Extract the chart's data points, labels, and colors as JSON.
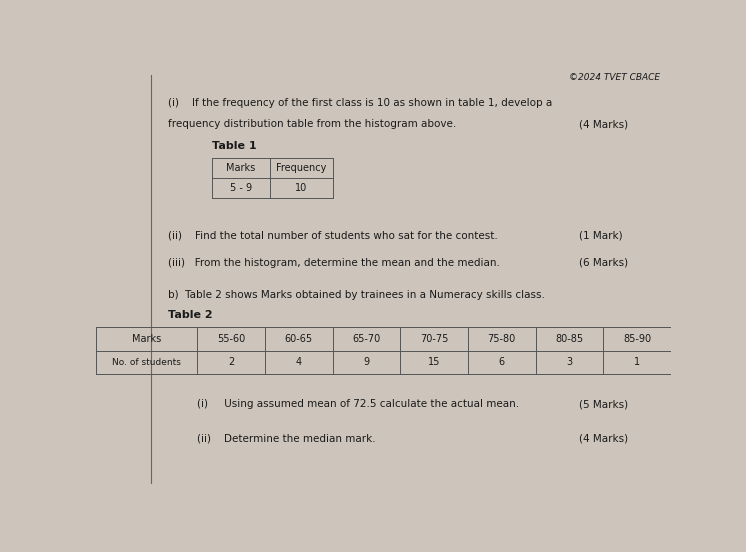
{
  "bg_color": "#cdc5bb",
  "header_text": "©2024 TVET CBACE",
  "part_a_i_text1": "(i)    If the frequency of the first class is 10 as shown in table 1, develop a",
  "part_a_i_text2": "frequency distribution table from the histogram above.",
  "part_a_i_marks": "(4 Marks)",
  "table1_title": "Table 1",
  "table1_headers": [
    "Marks",
    "Frequency"
  ],
  "table1_row": [
    "5 - 9",
    "10"
  ],
  "part_a_ii_text": "(ii)    Find the total number of students who sat for the contest.",
  "part_a_ii_marks": "(1 Mark)",
  "part_a_iii_text": "(iii)   From the histogram, determine the mean and the median.",
  "part_a_iii_marks": "(6 Marks)",
  "part_b_intro": "b)  Table 2 shows Marks obtained by trainees in a Numeracy skills class.",
  "table2_title": "Table 2",
  "table2_col0": "Marks",
  "table2_col0b": "No. of students",
  "table2_headers": [
    "55-60",
    "60-65",
    "65-70",
    "70-75",
    "75-80",
    "80-85",
    "85-90"
  ],
  "table2_values": [
    "2",
    "4",
    "9",
    "15",
    "6",
    "3",
    "1"
  ],
  "part_b_i_text": "(i)     Using assumed mean of 72.5 calculate the actual mean.",
  "part_b_i_marks": "(5 Marks)",
  "part_b_ii_text": "(ii)    Determine the median mark.",
  "part_b_ii_marks": "(4 Marks)",
  "vertical_line_x": 0.1,
  "text_color": "#1a1a1a",
  "table_line_color": "#555555",
  "fontsize_main": 7.5,
  "fontsize_table": 7.0,
  "fontsize_header": 6.5
}
